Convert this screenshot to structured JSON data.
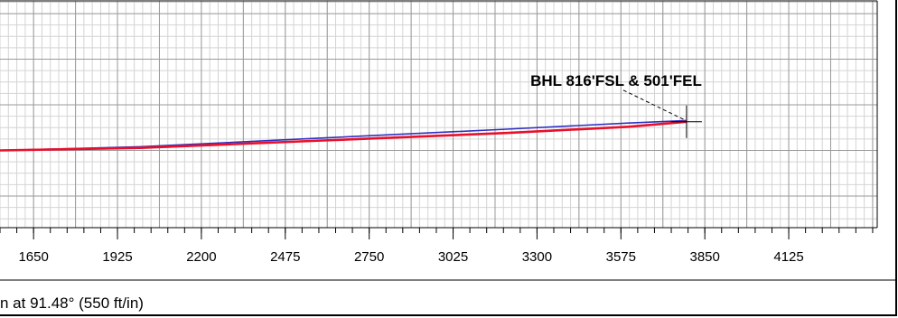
{
  "chart_data": {
    "type": "line",
    "title": "",
    "xlabel": "n at 91.48° (550 ft/in)",
    "ylabel": "",
    "xlim": [
      1540,
      4415
    ],
    "ylim": [
      -62,
      120
    ],
    "grid": true,
    "x_ticks": [
      1650,
      1925,
      2200,
      2475,
      2750,
      3025,
      3300,
      3575,
      3850,
      4125
    ],
    "tick_labels": [
      "1650",
      "1925",
      "2200",
      "2475",
      "2750",
      "3025",
      "3300",
      "3575",
      "3850",
      "4125"
    ],
    "series": [
      {
        "color": "#3030c0",
        "x": [
          1540,
          2000,
          2600,
          3200,
          3600,
          3790
        ],
        "y": [
          0,
          3,
          10,
          17,
          22,
          24
        ]
      },
      {
        "color": "#e8102a",
        "x": [
          1540,
          2000,
          2600,
          3200,
          3600,
          3790
        ],
        "y": [
          0,
          2,
          8,
          14,
          19,
          23
        ]
      }
    ],
    "annotations": [
      {
        "text": "BHL 816'FSL & 501'FEL",
        "x": 3790,
        "y": 23
      }
    ],
    "target_marker": {
      "x": 3790,
      "y": 23
    }
  }
}
